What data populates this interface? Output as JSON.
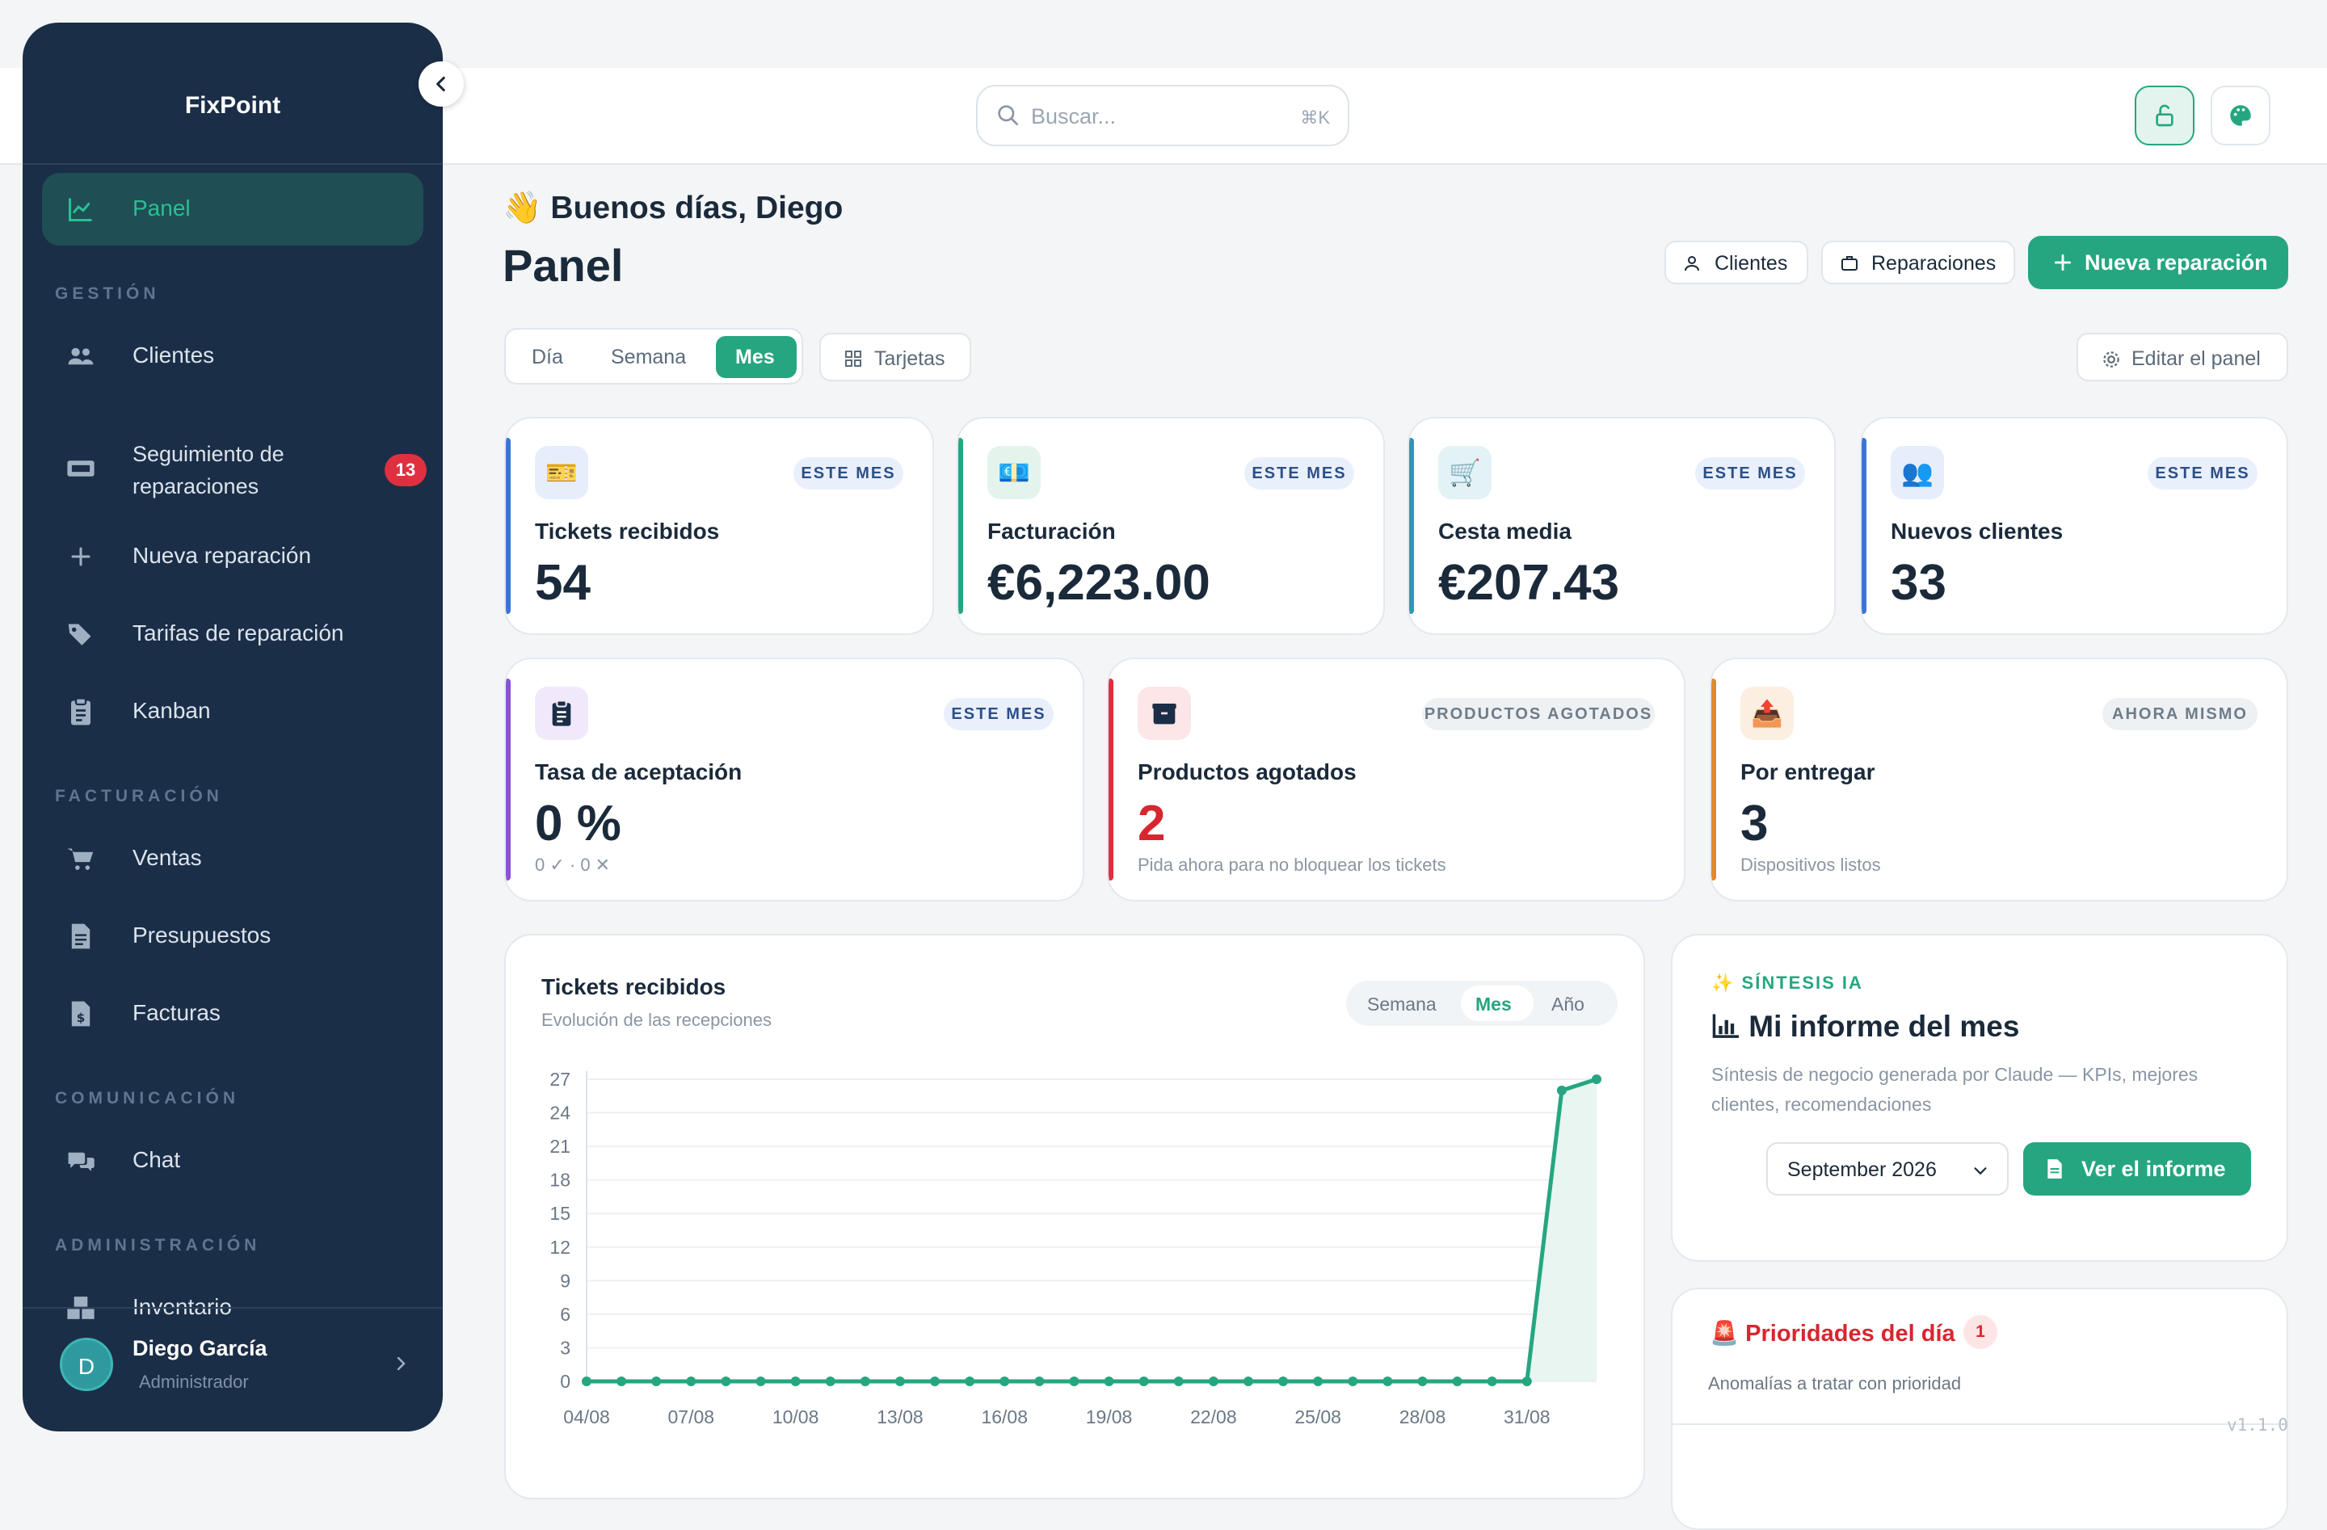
{
  "app": {
    "name": "FixPoint",
    "version": "v1.1.0"
  },
  "search": {
    "placeholder": "Buscar...",
    "shortcut": "⌘K"
  },
  "sidebar": {
    "items": [
      {
        "label": "Panel",
        "icon": "chart-line-icon",
        "active": true
      },
      {
        "label": "Clientes",
        "icon": "users-icon"
      },
      {
        "label": "Seguimiento de reparaciones",
        "icon": "ticket-icon",
        "badge": "13"
      },
      {
        "label": "Nueva reparación",
        "icon": "plus-icon"
      },
      {
        "label": "Tarifas de reparación",
        "icon": "tags-icon"
      },
      {
        "label": "Kanban",
        "icon": "clipboard-icon"
      },
      {
        "label": "Ventas",
        "icon": "cart-icon"
      },
      {
        "label": "Presupuestos",
        "icon": "file-icon"
      },
      {
        "label": "Facturas",
        "icon": "invoice-icon"
      },
      {
        "label": "Chat",
        "icon": "chat-icon"
      },
      {
        "label": "Inventario",
        "icon": "boxes-icon"
      }
    ],
    "sections": {
      "gestion": "GESTIÓN",
      "facturacion": "FACTURACIÓN",
      "comunicacion": "COMUNICACIÓN",
      "administracion": "ADMINISTRACIÓN"
    },
    "user": {
      "name": "Diego García",
      "role": "Administrador",
      "initial": "D"
    }
  },
  "header": {
    "greeting": "Buenos días, Diego",
    "greeting_emoji": "👋",
    "title": "Panel",
    "btn_clientes": "Clientes",
    "btn_reparaciones": "Reparaciones",
    "btn_nueva": "Nueva reparación",
    "period": {
      "options": [
        "Día",
        "Semana",
        "Mes"
      ],
      "selected": "Mes"
    },
    "btn_tarjetas": "Tarjetas",
    "btn_editar": "Editar el panel"
  },
  "kpis": [
    {
      "title": "Tickets recibidos",
      "value": "54",
      "pill": "ESTE MES",
      "emoji": "🎫"
    },
    {
      "title": "Facturación",
      "value": "€6,223.00",
      "pill": "ESTE MES",
      "emoji": "💶"
    },
    {
      "title": "Cesta media",
      "value": "€207.43",
      "pill": "ESTE MES",
      "emoji": "🛒"
    },
    {
      "title": "Nuevos clientes",
      "value": "33",
      "pill": "ESTE MES",
      "emoji": "👥"
    }
  ],
  "kpis2": [
    {
      "title": "Tasa de aceptación",
      "value": "0 %",
      "sub": "0 ✓ · 0 ✕",
      "pill": "ESTE MES"
    },
    {
      "title": "Productos agotados",
      "value": "2",
      "sub": "Pida ahora para no bloquear los tickets",
      "pill": "PRODUCTOS AGOTADOS"
    },
    {
      "title": "Por entregar",
      "value": "3",
      "sub": "Dispositivos listos",
      "pill": "AHORA MISMO",
      "emoji": "📤"
    }
  ],
  "chart": {
    "title": "Tickets recibidos",
    "subtitle": "Evolución de las recepciones",
    "toggle": {
      "options": [
        "Semana",
        "Mes",
        "Año"
      ],
      "selected": "Mes"
    },
    "colors": {
      "line": "#26a680",
      "fill": "#e6f4ef"
    }
  },
  "chart_data": {
    "type": "area",
    "x": [
      "04/08",
      "05/08",
      "06/08",
      "07/08",
      "08/08",
      "09/08",
      "10/08",
      "11/08",
      "12/08",
      "13/08",
      "14/08",
      "15/08",
      "16/08",
      "17/08",
      "18/08",
      "19/08",
      "20/08",
      "21/08",
      "22/08",
      "23/08",
      "24/08",
      "25/08",
      "26/08",
      "27/08",
      "28/08",
      "29/08",
      "30/08",
      "31/08",
      "01/09",
      "02/09"
    ],
    "values": [
      0,
      0,
      0,
      0,
      0,
      0,
      0,
      0,
      0,
      0,
      0,
      0,
      0,
      0,
      0,
      0,
      0,
      0,
      0,
      0,
      0,
      0,
      0,
      0,
      0,
      0,
      0,
      0,
      26,
      27
    ],
    "xticks": [
      "04/08",
      "07/08",
      "10/08",
      "13/08",
      "16/08",
      "19/08",
      "22/08",
      "25/08",
      "28/08",
      "31/08"
    ],
    "yticks": [
      0,
      3,
      6,
      9,
      12,
      15,
      18,
      21,
      24,
      27
    ],
    "ylim": [
      0,
      27
    ],
    "grid": true
  },
  "ai": {
    "tag": "SÍNTESIS IA",
    "title": "Mi informe del mes",
    "desc": "Síntesis de negocio generada por Claude — KPIs, mejores clientes, recomendaciones",
    "month": "September 2026",
    "button": "Ver el informe"
  },
  "priorities": {
    "title": "Prioridades del día",
    "count": "1",
    "subtitle": "Anomalías a tratar con prioridad"
  }
}
